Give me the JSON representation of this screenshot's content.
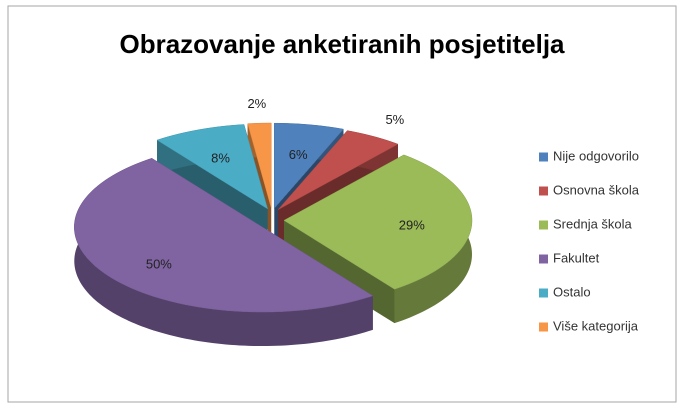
{
  "chart_data": {
    "type": "pie3d",
    "title": "Obrazovanje anketiranih posjetitelja",
    "categories": [
      "Nije odgovorilo",
      "Osnovna škola",
      "Srednja škola",
      "Fakultet",
      "Ostalo",
      "Više kategorija"
    ],
    "values": [
      6,
      5,
      29,
      50,
      8,
      2
    ],
    "value_labels": [
      "6%",
      "5%",
      "29%",
      "50%",
      "8%",
      "2%"
    ],
    "colors": [
      "#4f81bd",
      "#c0504d",
      "#9bbb59",
      "#8064a2",
      "#4bacc6",
      "#f79646"
    ],
    "legend": "right",
    "exploded": true
  }
}
